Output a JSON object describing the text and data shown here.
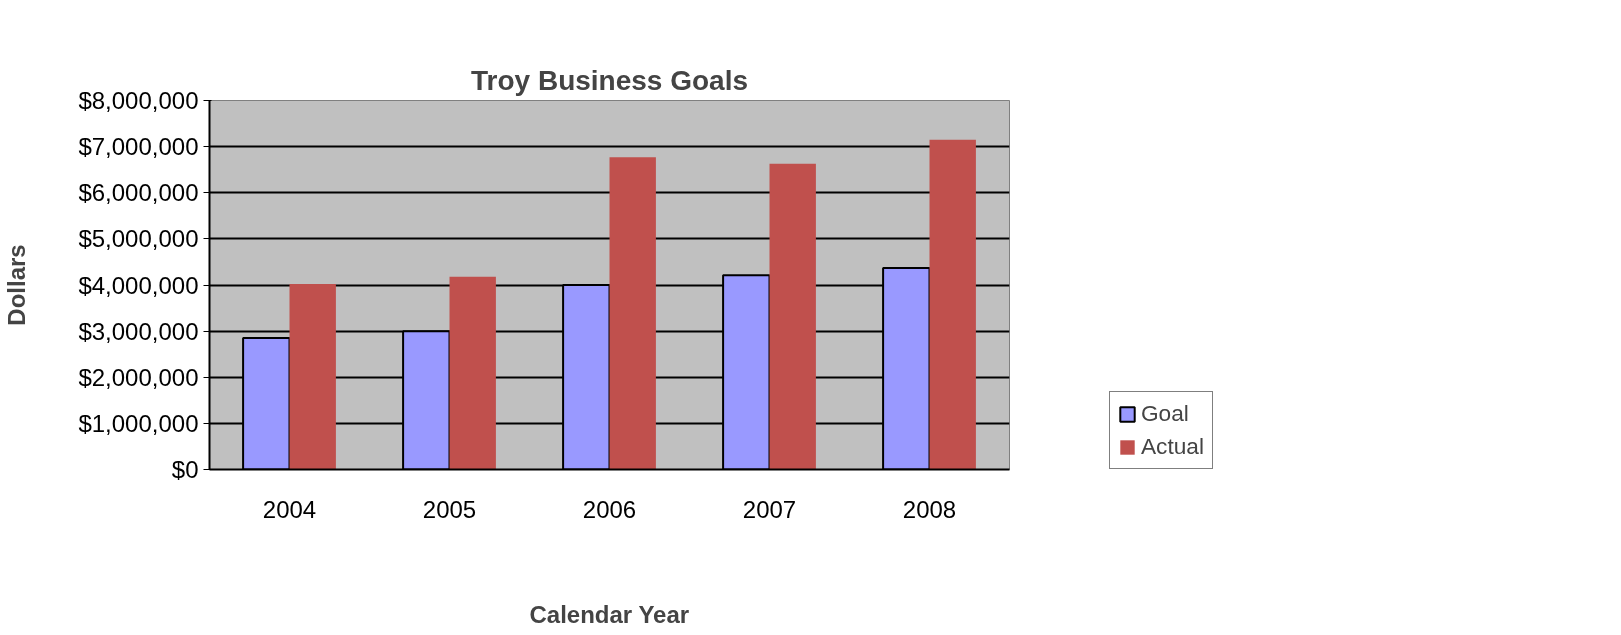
{
  "chart_data": {
    "type": "bar",
    "title": "Troy Business Goals",
    "xlabel": "Calendar Year",
    "ylabel": "Dollars",
    "categories": [
      "2004",
      "2005",
      "2006",
      "2007",
      "2008"
    ],
    "series": [
      {
        "name": "Goal",
        "color": "#9999ff",
        "values": [
          2850000,
          3000000,
          4000000,
          4210000,
          4370000
        ]
      },
      {
        "name": "Actual",
        "color": "#c0504d",
        "values": [
          4020000,
          4180000,
          6770000,
          6630000,
          7150000
        ]
      }
    ],
    "ylim": [
      0,
      8000000
    ],
    "yticks": [
      {
        "value": 0,
        "label": "$0"
      },
      {
        "value": 1000000,
        "label": "$1,000,000"
      },
      {
        "value": 2000000,
        "label": "$2,000,000"
      },
      {
        "value": 3000000,
        "label": "$3,000,000"
      },
      {
        "value": 4000000,
        "label": "$4,000,000"
      },
      {
        "value": 5000000,
        "label": "$5,000,000"
      },
      {
        "value": 6000000,
        "label": "$6,000,000"
      },
      {
        "value": 7000000,
        "label": "$7,000,000"
      },
      {
        "value": 8000000,
        "label": "$8,000,000"
      }
    ],
    "grid": "y",
    "legend": "right"
  }
}
